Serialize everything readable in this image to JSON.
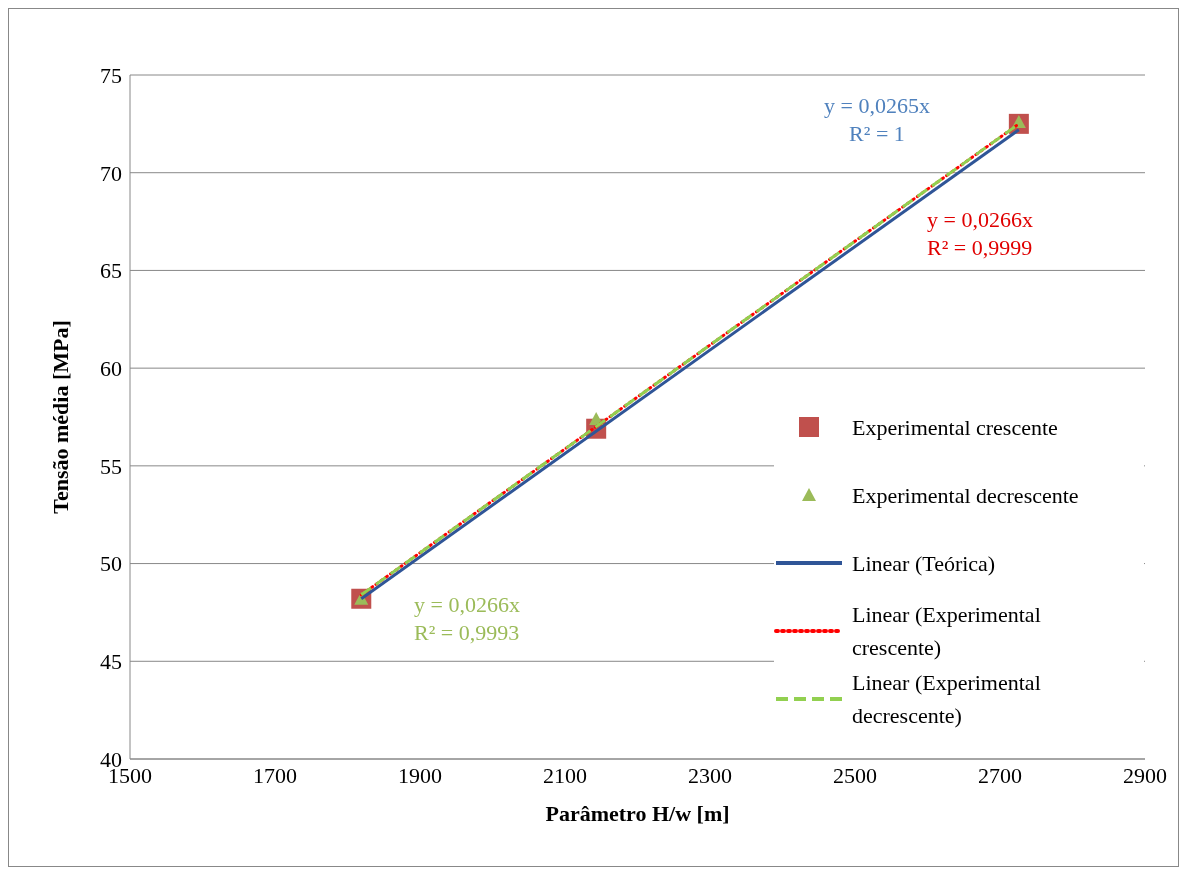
{
  "chart_data": {
    "type": "scatter",
    "xlabel": "Parâmetro H/w [m]",
    "ylabel": "Tensão média [MPa]",
    "xlim": [
      1500,
      2900
    ],
    "xticks": [
      1500,
      1700,
      1900,
      2100,
      2300,
      2500,
      2700,
      2900
    ],
    "ylim": [
      40,
      75
    ],
    "yticks": [
      40,
      45,
      50,
      55,
      60,
      65,
      70,
      75
    ],
    "grid": "y",
    "legend": "right",
    "series": [
      {
        "name": "Experimental crescente",
        "marker": "square",
        "color": "#c0504d",
        "x": [
          1819,
          2143,
          2726
        ],
        "values": [
          48.2,
          56.9,
          72.5
        ]
      },
      {
        "name": "Experimental decrescente",
        "marker": "triangle",
        "color": "#9bbb59",
        "x": [
          1819,
          2143,
          2726
        ],
        "values": [
          48.2,
          57.4,
          72.6
        ]
      },
      {
        "name": "Linear (Teórica)",
        "type": "line",
        "line_style": "solid",
        "color": "#2f5597",
        "x": [
          1819,
          2726
        ],
        "values": [
          48.2,
          72.2
        ]
      },
      {
        "name": "Linear (Experimental crescente)",
        "type": "line",
        "line_style": "dotted",
        "color": "#ff0000",
        "x": [
          1819,
          2726
        ],
        "values": [
          48.4,
          72.5
        ]
      },
      {
        "name": "Linear (Experimental decrescente)",
        "type": "line",
        "line_style": "dashed",
        "color": "#92d050",
        "x": [
          1819,
          2726
        ],
        "values": [
          48.4,
          72.5
        ]
      }
    ],
    "annotations": [
      "y = 0,0265x\nR² = 1",
      "y = 0,0266x\nR² = 0,9999",
      "y = 0,0266x\nR² = 0,9993"
    ]
  }
}
